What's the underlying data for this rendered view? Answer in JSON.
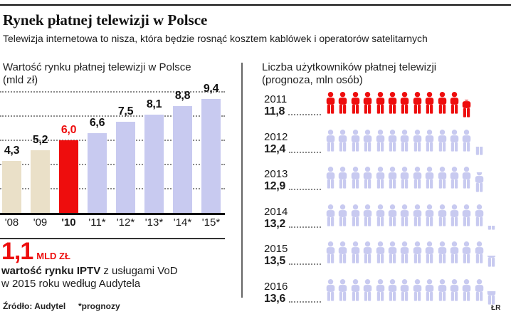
{
  "page": {
    "title": "Rynek płatnej telewizji w Polsce",
    "subtitle": "Telewizja internetowa to nisza, która będzie rosnąć kosztem kablówek i operatorów satelitarnych",
    "credit": "ŁR"
  },
  "left_chart": {
    "title": "Wartość rynku płatnej telewizji w Polsce",
    "unit_label": "(mld zł)"
  },
  "right_chart": {
    "title": "Liczba użytkowników płatnej telewizji",
    "unit_label": "(prognoza, mln osób)"
  },
  "callout": {
    "value": "1,1",
    "unit": "MLD ZŁ",
    "desc_bold": "wartość rynku IPTV",
    "desc_rest": " z usługami VoD",
    "desc_line2": "w 2015 roku według Audytela"
  },
  "footer": {
    "source": "Źródło: Audytel",
    "note": "*prognozy"
  },
  "chart_data": [
    {
      "type": "bar",
      "title": "Wartość rynku płatnej telewizji w Polsce (mld zł)",
      "categories": [
        "'08",
        "'09",
        "'10",
        "'11*",
        "'12*",
        "'13*",
        "'14*",
        "'15*"
      ],
      "values": [
        4.3,
        5.2,
        6.0,
        6.6,
        7.5,
        8.1,
        8.8,
        9.4
      ],
      "value_labels": [
        "4,3",
        "5,2",
        "6,0",
        "6,6",
        "7,5",
        "8,1",
        "8,8",
        "9,4"
      ],
      "highlight_index": 2,
      "forecast_from_index": 3,
      "colors": {
        "history": "#eae0c8",
        "highlight": "#ee0d0d",
        "forecast": "#c8caf0"
      },
      "xlabel": "",
      "ylabel": "mld zł",
      "ylim": [
        0,
        10.2
      ],
      "gridlines": [
        2,
        4,
        6,
        8,
        10
      ],
      "grid_style": "dotted",
      "legend": "none"
    },
    {
      "type": "pictogram",
      "title": "Liczba użytkowników płatnej telewizji (prognoza, mln osób)",
      "icon": "person",
      "icon_unit_mln": 1,
      "rows": [
        {
          "year": "2011",
          "label": "11,8",
          "value": 11.8,
          "color": "#ee0d0d"
        },
        {
          "year": "2012",
          "label": "12,4",
          "value": 12.4,
          "color": "#c8caf0"
        },
        {
          "year": "2013",
          "label": "12,9",
          "value": 12.9,
          "color": "#c8caf0"
        },
        {
          "year": "2014",
          "label": "13,2",
          "value": 13.2,
          "color": "#c8caf0"
        },
        {
          "year": "2015",
          "label": "13,5",
          "value": 13.5,
          "color": "#c8caf0"
        },
        {
          "year": "2016",
          "label": "13,6",
          "value": 13.6,
          "color": "#c8caf0"
        }
      ]
    }
  ]
}
